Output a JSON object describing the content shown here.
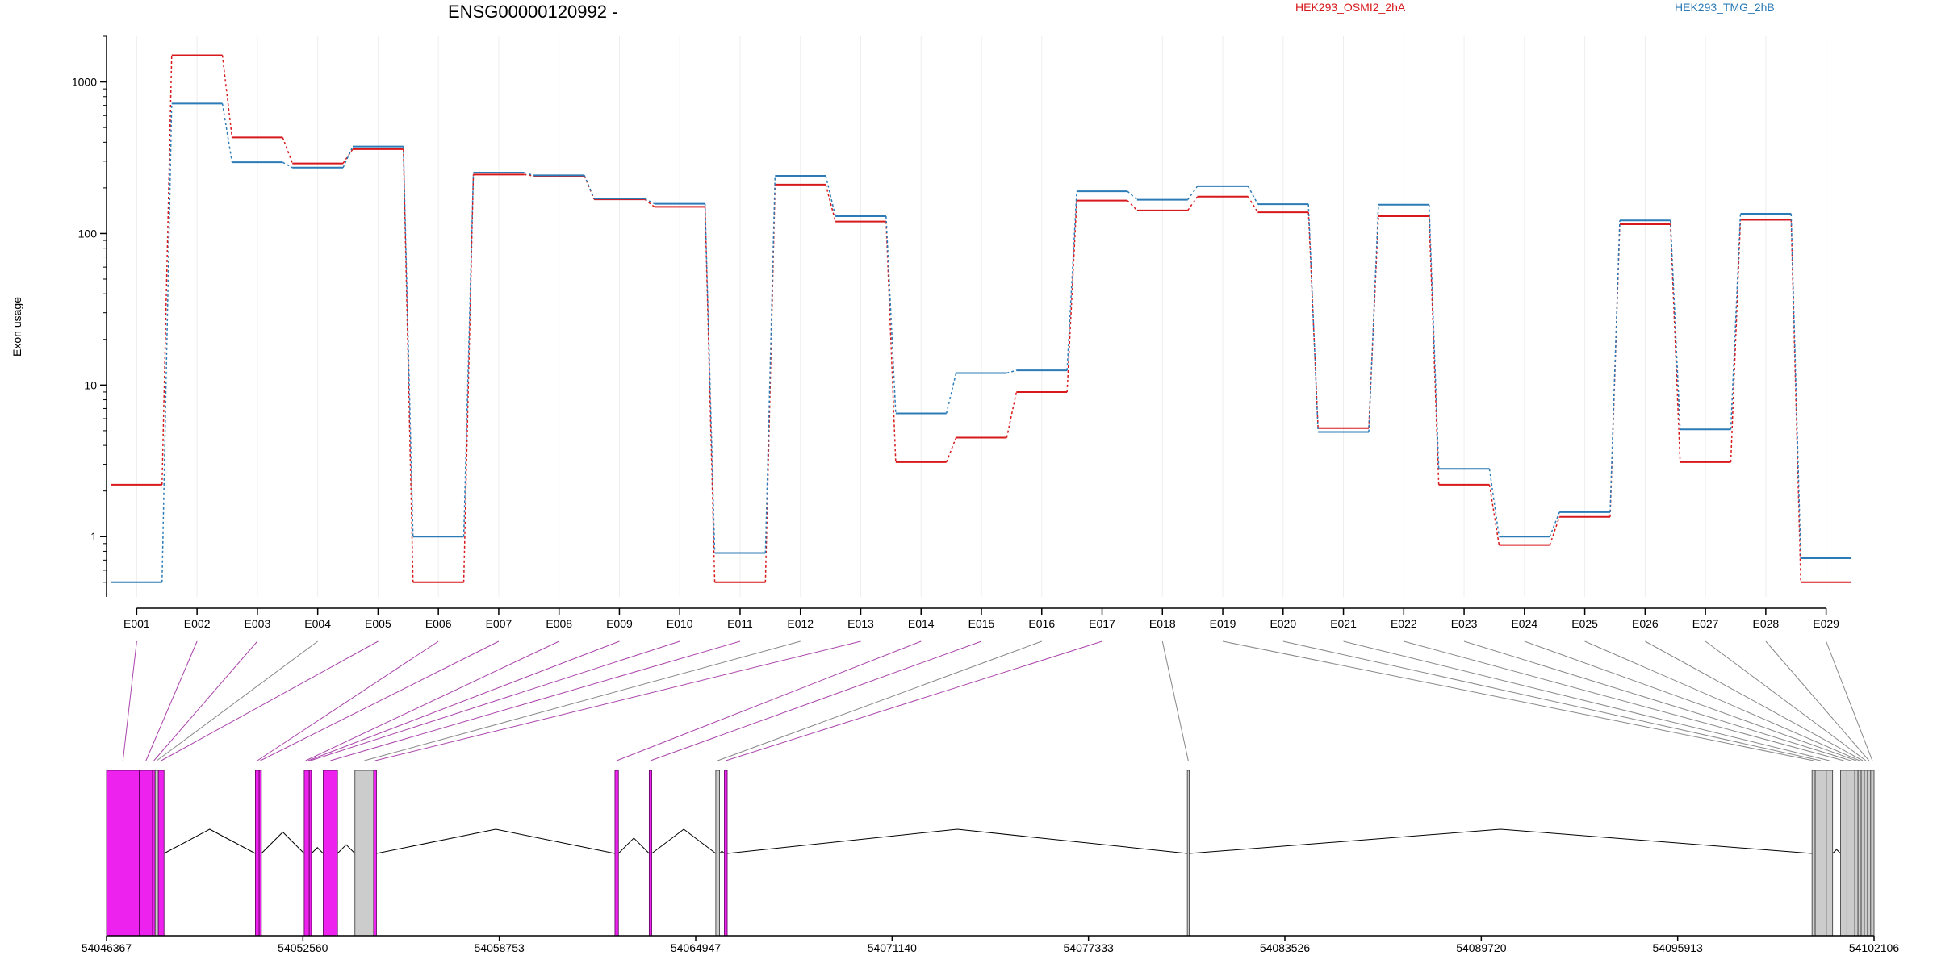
{
  "chart_data": {
    "type": "line",
    "title": "ENSG00000120992 -",
    "ylabel": "Exon usage",
    "y_scale": "log",
    "ylim": [
      0.4,
      2000
    ],
    "y_ticks": [
      "1",
      "10",
      "100",
      "1000"
    ],
    "y_tick_values": [
      1,
      10,
      100,
      1000
    ],
    "categories": [
      "E001",
      "E002",
      "E003",
      "E004",
      "E005",
      "E006",
      "E007",
      "E008",
      "E009",
      "E010",
      "E011",
      "E012",
      "E013",
      "E014",
      "E015",
      "E016",
      "E017",
      "E018",
      "E019",
      "E020",
      "E021",
      "E022",
      "E023",
      "E024",
      "E025",
      "E026",
      "E027",
      "E028",
      "E029"
    ],
    "legend_placement": "top",
    "grid": "vertical",
    "series": [
      {
        "name": "HEK293_OSMI2_2hA",
        "color": "#d7191c",
        "values": [
          2.2,
          1500,
          430,
          290,
          360,
          0.5,
          245,
          240,
          168,
          150,
          0.5,
          210,
          120,
          3.1,
          4.5,
          9,
          165,
          142,
          175,
          138,
          5.2,
          130,
          2.2,
          0.88,
          1.35,
          115,
          3.1,
          123,
          0.5
        ]
      },
      {
        "name": "HEK293_TMG_2hB",
        "color": "#2c7bb6",
        "values": [
          0.5,
          720,
          295,
          272,
          375,
          1.0,
          252,
          242,
          170,
          157,
          0.78,
          240,
          130,
          6.5,
          12,
          12.5,
          190,
          167,
          205,
          156,
          4.9,
          155,
          2.8,
          1.0,
          1.45,
          122,
          5.1,
          135,
          0.72
        ]
      }
    ],
    "gene_model": {
      "x_ticks": [
        "54046367",
        "54052560",
        "54058753",
        "54064947",
        "54071140",
        "54077333",
        "54083526",
        "54089720",
        "54095913",
        "54102106"
      ],
      "x_tick_values": [
        54046367,
        54052560,
        54058753,
        54064947,
        54071140,
        54077333,
        54083526,
        54089720,
        54095913,
        54102106
      ],
      "xlim": [
        54046367,
        54102106
      ],
      "highlight_color": "#ee22ee",
      "neutral_color": "#cccccc",
      "exons": [
        {
          "id": "E001",
          "start": 54046367,
          "end": 54047400,
          "highlight": true
        },
        {
          "id": "E002",
          "start": 54047400,
          "end": 54047820,
          "highlight": true
        },
        {
          "id": "E003",
          "start": 54047820,
          "end": 54047900,
          "highlight": true
        },
        {
          "id": "E004",
          "start": 54047900,
          "end": 54048000,
          "highlight": false
        },
        {
          "id": "E005",
          "start": 54048000,
          "end": 54048180,
          "highlight": true
        },
        {
          "id": "E006",
          "start": 54051060,
          "end": 54051180,
          "highlight": true
        },
        {
          "id": "E007",
          "start": 54051180,
          "end": 54051250,
          "highlight": true
        },
        {
          "id": "E008",
          "start": 54052600,
          "end": 54052690,
          "highlight": true
        },
        {
          "id": "E009",
          "start": 54052690,
          "end": 54052760,
          "highlight": true
        },
        {
          "id": "E010",
          "start": 54052760,
          "end": 54052830,
          "highlight": true
        },
        {
          "id": "E011",
          "start": 54053200,
          "end": 54053650,
          "highlight": true
        },
        {
          "id": "E012",
          "start": 54054200,
          "end": 54054790,
          "highlight": false
        },
        {
          "id": "E013",
          "start": 54054790,
          "end": 54054880,
          "highlight": true
        },
        {
          "id": "E014",
          "start": 54062400,
          "end": 54062510,
          "highlight": true
        },
        {
          "id": "E015",
          "start": 54063480,
          "end": 54063560,
          "highlight": true
        },
        {
          "id": "E016",
          "start": 54065580,
          "end": 54065700,
          "highlight": false
        },
        {
          "id": "E017",
          "start": 54065850,
          "end": 54065940,
          "highlight": true
        },
        {
          "id": "E018",
          "start": 54080450,
          "end": 54080510,
          "highlight": false
        },
        {
          "id": "E019",
          "start": 54100150,
          "end": 54100250,
          "highlight": false
        },
        {
          "id": "E020",
          "start": 54100250,
          "end": 54100600,
          "highlight": false
        },
        {
          "id": "E021",
          "start": 54100600,
          "end": 54100800,
          "highlight": false
        },
        {
          "id": "E022",
          "start": 54101050,
          "end": 54101250,
          "highlight": false
        },
        {
          "id": "E023",
          "start": 54101250,
          "end": 54101500,
          "highlight": false
        },
        {
          "id": "E024",
          "start": 54101500,
          "end": 54101600,
          "highlight": false
        },
        {
          "id": "E025",
          "start": 54101600,
          "end": 54101700,
          "highlight": false
        },
        {
          "id": "E026",
          "start": 54101700,
          "end": 54101800,
          "highlight": false
        },
        {
          "id": "E027",
          "start": 54101800,
          "end": 54101900,
          "highlight": false
        },
        {
          "id": "E028",
          "start": 54101900,
          "end": 54102000,
          "highlight": false
        },
        {
          "id": "E029",
          "start": 54102000,
          "end": 54102106,
          "highlight": false
        }
      ]
    }
  }
}
